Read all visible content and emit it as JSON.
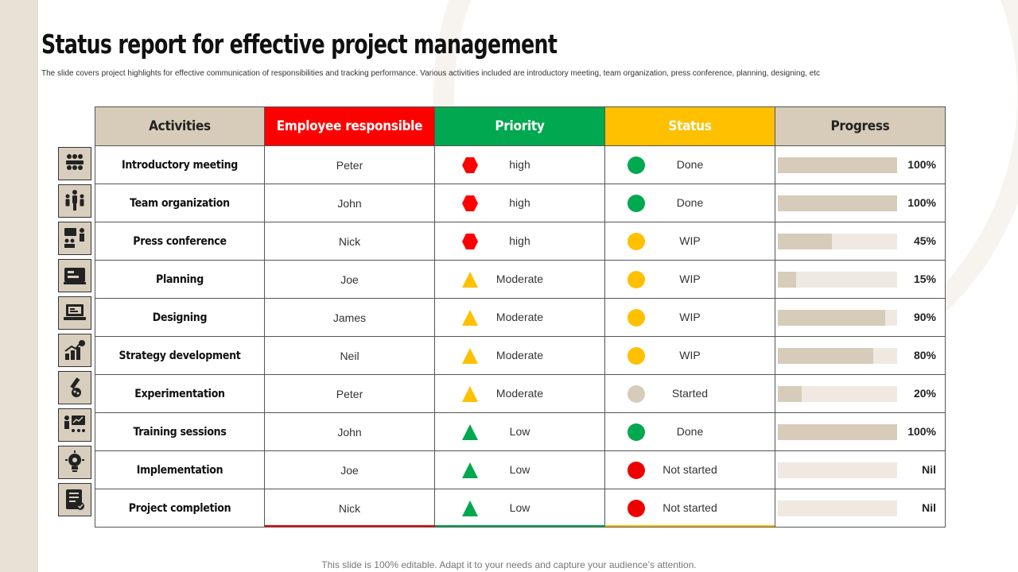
{
  "title": "Status report for effective project management",
  "subtitle": "The slide covers project highlights for effective communication of responsibilities and tracking performance. Various activities included are introductory meeting, team organization, press conference, planning, designing, etc",
  "footer": "This slide is 100% editable. Adapt it to your needs and capture your audience’s attention.",
  "colors": {
    "red": "#ff0000",
    "green": "#00a84f",
    "yellow": "#ffc000",
    "beige": "#d6ccb9",
    "dot_green": "#00a84f",
    "dot_yellow": "#ffc000",
    "dot_beige": "#d6ccb9",
    "dot_red": "#ee0000"
  },
  "table": {
    "headers": {
      "activities": "Activities",
      "employee": "Employee responsible",
      "priority": "Priority",
      "status": "Status",
      "progress": "Progress"
    },
    "rows": [
      {
        "activity": "Introductory meeting",
        "employee": "Peter",
        "priority": "high",
        "priority_icon": "hexagon-red-icon",
        "status": "Done",
        "status_color": "#00a84f",
        "progress_value": 100,
        "progress": "100%",
        "icon": "meeting-icon"
      },
      {
        "activity": "Team organization",
        "employee": "John",
        "priority": "high",
        "priority_icon": "hexagon-red-icon",
        "status": "Done",
        "status_color": "#00a84f",
        "progress_value": 100,
        "progress": "100%",
        "icon": "team-icon"
      },
      {
        "activity": "Press conference",
        "employee": "Nick",
        "priority": "high",
        "priority_icon": "hexagon-red-icon",
        "status": "WIP",
        "status_color": "#ffc000",
        "progress_value": 45,
        "progress": "45%",
        "icon": "press-conference-icon"
      },
      {
        "activity": "Planning",
        "employee": "Joe",
        "priority": "Moderate",
        "priority_icon": "triangle-yellow-icon",
        "status": "WIP",
        "status_color": "#ffc000",
        "progress_value": 15,
        "progress": "15%",
        "icon": "planning-icon"
      },
      {
        "activity": "Designing",
        "employee": "James",
        "priority": "Moderate",
        "priority_icon": "triangle-yellow-icon",
        "status": "WIP",
        "status_color": "#ffc000",
        "progress_value": 90,
        "progress": "90%",
        "icon": "laptop-design-icon"
      },
      {
        "activity": "Strategy development",
        "employee": "Neil",
        "priority": "Moderate",
        "priority_icon": "triangle-yellow-icon",
        "status": "WIP",
        "status_color": "#ffc000",
        "progress_value": 80,
        "progress": "80%",
        "icon": "growth-chart-icon"
      },
      {
        "activity": "Experimentation",
        "employee": "Peter",
        "priority": "Moderate",
        "priority_icon": "triangle-yellow-icon",
        "status": "Started",
        "status_color": "#d6ccb9",
        "progress_value": 20,
        "progress": "20%",
        "icon": "test-tube-icon"
      },
      {
        "activity": "Training sessions",
        "employee": "John",
        "priority": "Low",
        "priority_icon": "triangle-green-icon",
        "status": "Done",
        "status_color": "#00a84f",
        "progress_value": 100,
        "progress": "100%",
        "icon": "training-icon"
      },
      {
        "activity": "Implementation",
        "employee": "Joe",
        "priority": "Low",
        "priority_icon": "triangle-green-icon",
        "status": "Not started",
        "status_color": "#ee0000",
        "progress_value": 0,
        "progress": "Nil",
        "icon": "lightbulb-gear-icon"
      },
      {
        "activity": "Project completion",
        "employee": "Nick",
        "priority": "Low",
        "priority_icon": "triangle-green-icon",
        "status": "Not started",
        "status_color": "#ee0000",
        "progress_value": 0,
        "progress": "Nil",
        "icon": "checklist-icon"
      }
    ]
  }
}
